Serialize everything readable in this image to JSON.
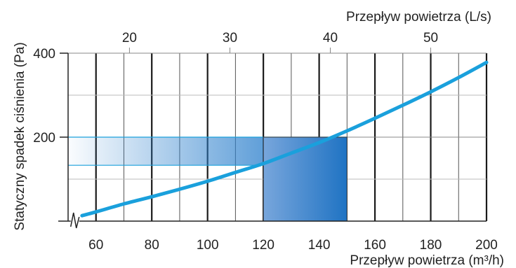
{
  "chart_data": {
    "type": "line",
    "xlabel": "Przepływ powietrza (m³/h)",
    "x2label": "Przepływ powietrza (L/s)",
    "ylabel": "Statyczny spadek ciśnienia (Pa)",
    "xlim": [
      50,
      200
    ],
    "ylim": [
      0,
      400
    ],
    "x_ticks": [
      60,
      80,
      100,
      120,
      140,
      160,
      180,
      200
    ],
    "x_tick_labels": [
      "60",
      "80",
      "100",
      "120",
      "140",
      "160",
      "180",
      "200"
    ],
    "x2_ticks": [
      20,
      30,
      40,
      50
    ],
    "x2_tick_labels": [
      "20",
      "30",
      "40",
      "50"
    ],
    "y_ticks": [
      200,
      400
    ],
    "y_tick_labels": [
      "200",
      "400"
    ],
    "grid": true,
    "axis_break": true,
    "series": [
      {
        "x": [
          55,
          60,
          70,
          80,
          90,
          100,
          110,
          120,
          130,
          140,
          150,
          160,
          170,
          180,
          190,
          200
        ],
        "y": [
          13,
          22,
          41,
          58,
          76,
          95,
          116,
          137,
          162,
          187,
          215,
          245,
          276,
          308,
          342,
          378
        ],
        "color": "#1aa0dc"
      }
    ],
    "highlight": {
      "x_range": [
        120,
        150
      ],
      "y_range": [
        133,
        200
      ],
      "color": "#1f73c3"
    }
  }
}
